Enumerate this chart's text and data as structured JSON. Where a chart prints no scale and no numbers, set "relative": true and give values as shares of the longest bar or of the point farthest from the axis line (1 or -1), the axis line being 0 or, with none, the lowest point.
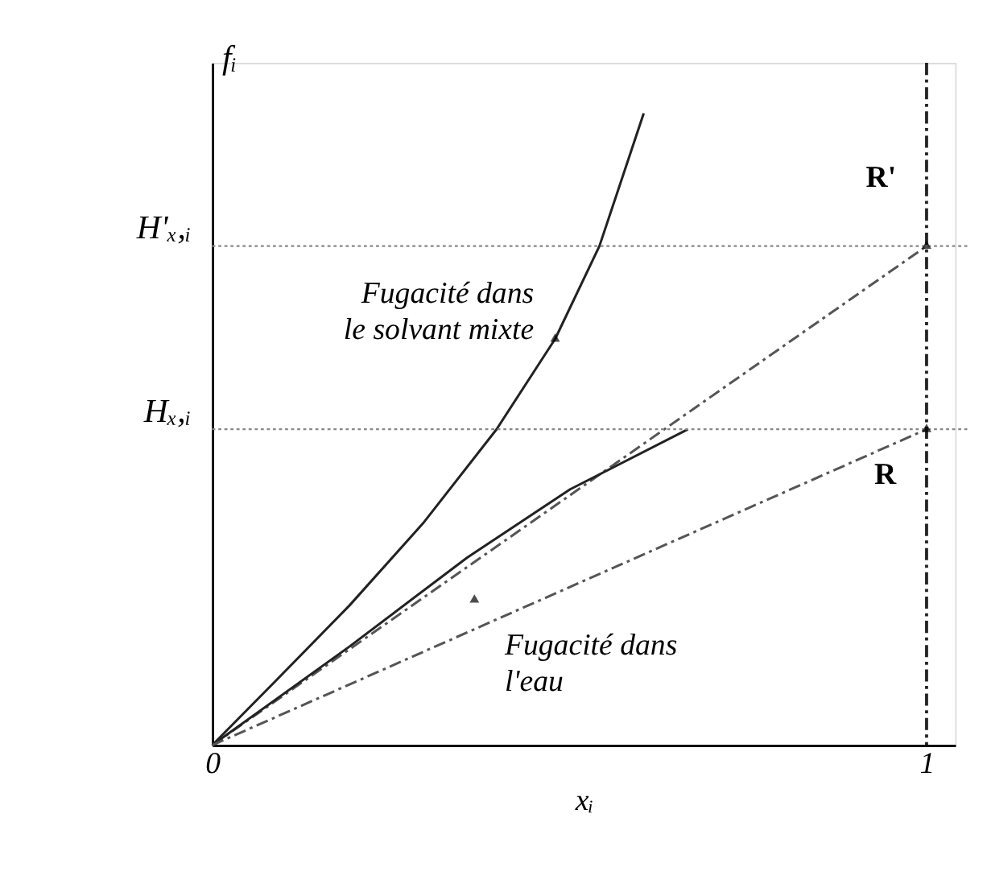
{
  "chart_data": {
    "type": "line",
    "relative": true,
    "xlabel": "xᵢ",
    "ylabel": "fᵢ",
    "xlim": [
      0,
      1.04
    ],
    "xticks": [
      0,
      1
    ],
    "grid": false,
    "series": [
      {
        "color": "#222222",
        "line_style": "solid",
        "x": [
          0,
          0.089,
          0.192,
          0.295,
          0.398,
          0.48,
          0.542,
          0.604
        ],
        "values": [
          0,
          0.102,
          0.221,
          0.351,
          0.5,
          0.643,
          0.79,
          1.0
        ]
      },
      {
        "color": "#555555",
        "line_style": "dashed",
        "x": [
          0,
          1
        ],
        "values": [
          0,
          0.79
        ]
      },
      {
        "color": "#222222",
        "line_style": "solid",
        "x": [
          0,
          0.192,
          0.357,
          0.501,
          0.666
        ],
        "values": [
          0,
          0.156,
          0.297,
          0.405,
          0.5
        ]
      },
      {
        "color": "#555555",
        "line_style": "dashed",
        "x": [
          0,
          1
        ],
        "values": [
          0,
          0.5
        ]
      }
    ],
    "ref_lines": [
      {
        "axis": "y",
        "value": 0.79,
        "label": "H'ₓ,ᵢ",
        "color": "#888888",
        "line_style": "dotted"
      },
      {
        "axis": "y",
        "value": 0.5,
        "label": "Hₓ,ᵢ",
        "color": "#888888",
        "line_style": "dotted"
      },
      {
        "axis": "x",
        "value": 1,
        "color": "#222222",
        "line_style": "dashed"
      }
    ],
    "annotations": [
      {
        "text": "Fugacité dans le solvant mixte",
        "x": 0.48,
        "y": 0.643
      },
      {
        "text": "Fugacité dans l'eau",
        "x": 0.367,
        "y": 0.23
      },
      {
        "text": "R'",
        "x": 1,
        "y": 0.79
      },
      {
        "text": "R",
        "x": 1,
        "y": 0.5
      }
    ]
  }
}
